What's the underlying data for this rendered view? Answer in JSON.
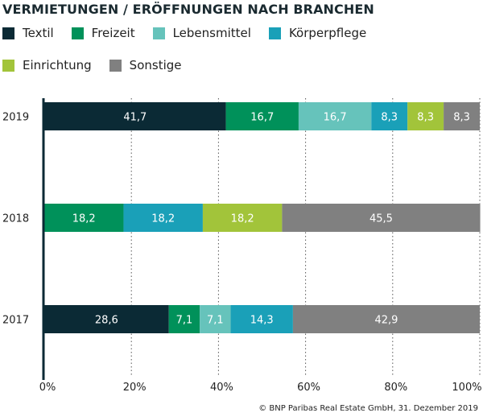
{
  "chart_data": {
    "type": "bar",
    "orientation": "horizontal",
    "stacked": true,
    "title": "VERMIETUNGEN / ERÖFFNUNGEN NACH BRANCHEN",
    "categories": [
      "2019",
      "2018",
      "2017"
    ],
    "series": [
      {
        "name": "Textil",
        "color": "#0b2a35",
        "values": [
          41.7,
          0,
          28.6
        ]
      },
      {
        "name": "Freizeit",
        "color": "#00915a",
        "values": [
          16.7,
          18.2,
          7.1
        ]
      },
      {
        "name": "Lebensmittel",
        "color": "#66c3bb",
        "values": [
          16.7,
          0,
          7.1
        ]
      },
      {
        "name": "Körperpflege",
        "color": "#1aa0b8",
        "values": [
          8.3,
          18.2,
          14.3
        ]
      },
      {
        "name": "Einrichtung",
        "color": "#a2c43a",
        "values": [
          8.3,
          18.2,
          0
        ]
      },
      {
        "name": "Sonstige",
        "color": "#808080",
        "values": [
          8.3,
          45.5,
          42.9
        ]
      }
    ],
    "xlim": [
      0,
      100
    ],
    "xticks": [
      "0%",
      "20%",
      "40%",
      "60%",
      "80%",
      "100%"
    ],
    "grid": "vertical dotted",
    "legend": "top"
  },
  "source": "© BNP Paribas Real Estate GmbH, 31. Dezember 2019"
}
